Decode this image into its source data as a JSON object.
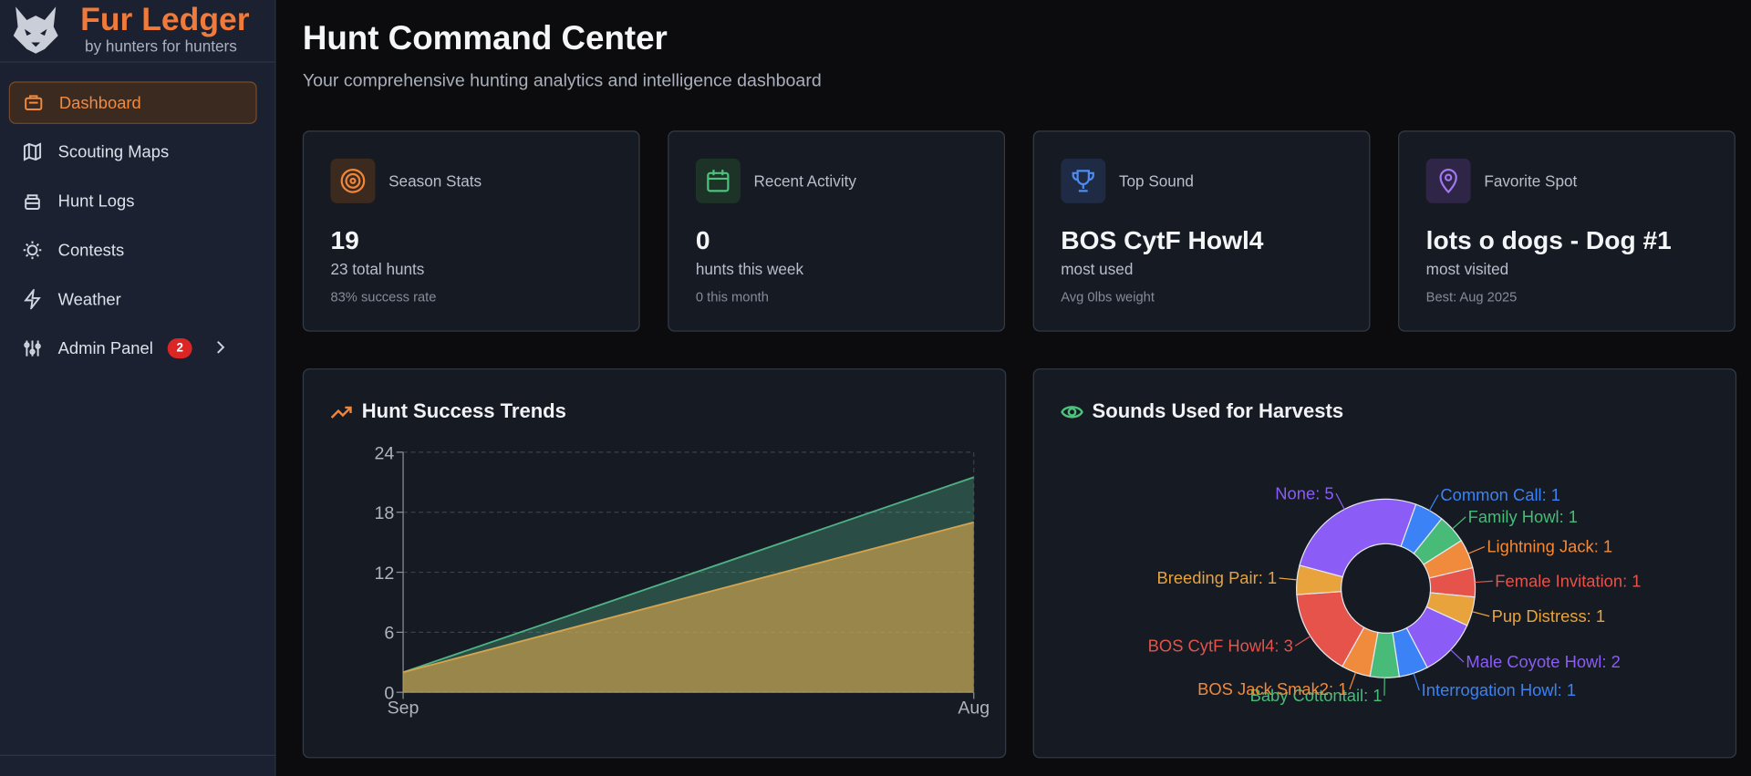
{
  "sidebar": {
    "brand": "Fur Ledger",
    "tagline": "by hunters for hunters",
    "nav": [
      {
        "label": "Dashboard"
      },
      {
        "label": "Scouting Maps"
      },
      {
        "label": "Hunt Logs"
      },
      {
        "label": "Contests"
      },
      {
        "label": "Weather"
      },
      {
        "label": "Admin Panel",
        "badge": 2
      }
    ]
  },
  "header": {
    "title": "Hunt Command Center",
    "subtitle": "Your comprehensive hunting analytics and intelligence dashboard"
  },
  "stat_cards": [
    {
      "label": "Season Stats",
      "value": 19,
      "detail": "23 total hunts",
      "note": "83% success rate"
    },
    {
      "label": "Recent Activity",
      "value": 0,
      "detail": "hunts this week",
      "note": "0 this month"
    },
    {
      "label": "Top Sound",
      "value": "BOS CytF Howl4",
      "detail": "most used",
      "note": "Avg 0lbs weight"
    },
    {
      "label": "Favorite Spot",
      "value": "lots o dogs - Dog #1",
      "detail": "most visited",
      "note": "Best: Aug 2025"
    }
  ],
  "chart_data": [
    {
      "type": "area",
      "title": "Hunt Success Trends",
      "categories": [
        "Sep",
        "Aug"
      ],
      "series": [
        {
          "color": "#4fb286",
          "values": [
            2,
            21.5
          ]
        },
        {
          "color": "#d4a44f",
          "values": [
            2,
            17
          ]
        }
      ],
      "ylim": [
        0,
        24
      ],
      "yticks": [
        0,
        6,
        12,
        18,
        24
      ],
      "grid": true
    },
    {
      "type": "pie",
      "title": "Sounds Used for Harvests",
      "values": [
        5,
        1,
        1,
        1,
        1,
        1,
        2,
        1,
        1,
        1,
        3,
        1
      ],
      "value_labels": [
        "None: 5",
        "Common Call: 1",
        "Family Howl: 1",
        "Lightning Jack: 1",
        "Female Invitation: 1",
        "Pup Distress: 1",
        "Male Coyote Howl: 2",
        "Interrogation Howl: 1",
        "Baby Cottontail: 1",
        "BOS Jack Smak2: 1",
        "BOS CytF Howl4: 3",
        "Breeding Pair: 1"
      ],
      "colors": [
        "#8b5cf6",
        "#3b82f6",
        "#48bb78",
        "#f08a3c",
        "#e5534b",
        "#e8a33d",
        "#8b5cf6",
        "#3b82f6",
        "#48bb78",
        "#f08a3c",
        "#e5534b",
        "#e8a33d"
      ]
    }
  ]
}
